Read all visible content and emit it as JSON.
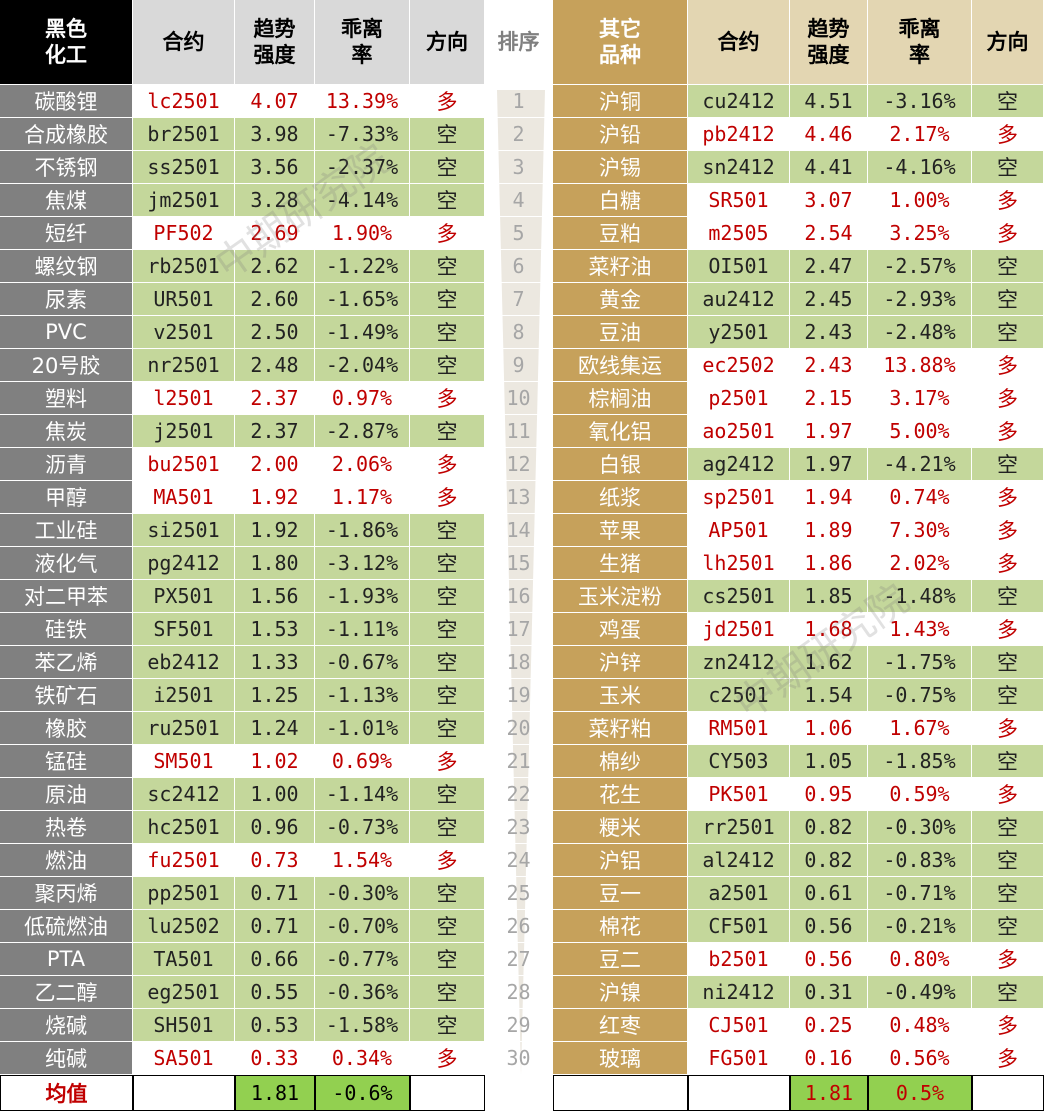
{
  "header": {
    "left": [
      "黑色化工",
      "合约",
      "趋势强度",
      "乖离率",
      "方向"
    ],
    "rank": "排序",
    "right": [
      "其它品种",
      "合约",
      "趋势强度",
      "乖离率",
      "方向"
    ]
  },
  "rows": [
    {
      "rank": 1,
      "left": [
        "碳酸锂",
        "lc2501",
        "4.07",
        "13.39%",
        "多"
      ],
      "right": [
        "沪铜",
        "cu2412",
        "4.51",
        "-3.16%",
        "空"
      ]
    },
    {
      "rank": 2,
      "left": [
        "合成橡胶",
        "br2501",
        "3.98",
        "-7.33%",
        "空"
      ],
      "right": [
        "沪铅",
        "pb2412",
        "4.46",
        "2.17%",
        "多"
      ]
    },
    {
      "rank": 3,
      "left": [
        "不锈钢",
        "ss2501",
        "3.56",
        "-2.37%",
        "空"
      ],
      "right": [
        "沪锡",
        "sn2412",
        "4.41",
        "-4.16%",
        "空"
      ]
    },
    {
      "rank": 4,
      "left": [
        "焦煤",
        "jm2501",
        "3.28",
        "-4.14%",
        "空"
      ],
      "right": [
        "白糖",
        "SR501",
        "3.07",
        "1.00%",
        "多"
      ]
    },
    {
      "rank": 5,
      "left": [
        "短纤",
        "PF502",
        "2.69",
        "1.90%",
        "多"
      ],
      "right": [
        "豆粕",
        "m2505",
        "2.54",
        "3.25%",
        "多"
      ]
    },
    {
      "rank": 6,
      "left": [
        "螺纹钢",
        "rb2501",
        "2.62",
        "-1.22%",
        "空"
      ],
      "right": [
        "菜籽油",
        "OI501",
        "2.47",
        "-2.57%",
        "空"
      ]
    },
    {
      "rank": 7,
      "left": [
        "尿素",
        "UR501",
        "2.60",
        "-1.65%",
        "空"
      ],
      "right": [
        "黄金",
        "au2412",
        "2.45",
        "-2.93%",
        "空"
      ]
    },
    {
      "rank": 8,
      "left": [
        "PVC",
        "v2501",
        "2.50",
        "-1.49%",
        "空"
      ],
      "right": [
        "豆油",
        "y2501",
        "2.43",
        "-2.48%",
        "空"
      ]
    },
    {
      "rank": 9,
      "left": [
        "20号胶",
        "nr2501",
        "2.48",
        "-2.04%",
        "空"
      ],
      "right": [
        "欧线集运",
        "ec2502",
        "2.43",
        "13.88%",
        "多"
      ]
    },
    {
      "rank": 10,
      "left": [
        "塑料",
        "l2501",
        "2.37",
        "0.97%",
        "多"
      ],
      "right": [
        "棕榈油",
        "p2501",
        "2.15",
        "3.17%",
        "多"
      ]
    },
    {
      "rank": 11,
      "left": [
        "焦炭",
        "j2501",
        "2.37",
        "-2.87%",
        "空"
      ],
      "right": [
        "氧化铝",
        "ao2501",
        "1.97",
        "5.00%",
        "多"
      ]
    },
    {
      "rank": 12,
      "left": [
        "沥青",
        "bu2501",
        "2.00",
        "2.06%",
        "多"
      ],
      "right": [
        "白银",
        "ag2412",
        "1.97",
        "-4.21%",
        "空"
      ]
    },
    {
      "rank": 13,
      "left": [
        "甲醇",
        "MA501",
        "1.92",
        "1.17%",
        "多"
      ],
      "right": [
        "纸浆",
        "sp2501",
        "1.94",
        "0.74%",
        "多"
      ]
    },
    {
      "rank": 14,
      "left": [
        "工业硅",
        "si2501",
        "1.92",
        "-1.86%",
        "空"
      ],
      "right": [
        "苹果",
        "AP501",
        "1.89",
        "7.30%",
        "多"
      ]
    },
    {
      "rank": 15,
      "left": [
        "液化气",
        "pg2412",
        "1.80",
        "-3.12%",
        "空"
      ],
      "right": [
        "生猪",
        "lh2501",
        "1.86",
        "2.02%",
        "多"
      ]
    },
    {
      "rank": 16,
      "left": [
        "对二甲苯",
        "PX501",
        "1.56",
        "-1.93%",
        "空"
      ],
      "right": [
        "玉米淀粉",
        "cs2501",
        "1.85",
        "-1.48%",
        "空"
      ]
    },
    {
      "rank": 17,
      "left": [
        "硅铁",
        "SF501",
        "1.53",
        "-1.11%",
        "空"
      ],
      "right": [
        "鸡蛋",
        "jd2501",
        "1.68",
        "1.43%",
        "多"
      ]
    },
    {
      "rank": 18,
      "left": [
        "苯乙烯",
        "eb2412",
        "1.33",
        "-0.67%",
        "空"
      ],
      "right": [
        "沪锌",
        "zn2412",
        "1.62",
        "-1.75%",
        "空"
      ]
    },
    {
      "rank": 19,
      "left": [
        "铁矿石",
        "i2501",
        "1.25",
        "-1.13%",
        "空"
      ],
      "right": [
        "玉米",
        "c2501",
        "1.54",
        "-0.75%",
        "空"
      ]
    },
    {
      "rank": 20,
      "left": [
        "橡胶",
        "ru2501",
        "1.24",
        "-1.01%",
        "空"
      ],
      "right": [
        "菜籽粕",
        "RM501",
        "1.06",
        "1.67%",
        "多"
      ]
    },
    {
      "rank": 21,
      "left": [
        "锰硅",
        "SM501",
        "1.02",
        "0.69%",
        "多"
      ],
      "right": [
        "棉纱",
        "CY503",
        "1.05",
        "-1.85%",
        "空"
      ]
    },
    {
      "rank": 22,
      "left": [
        "原油",
        "sc2412",
        "1.00",
        "-1.14%",
        "空"
      ],
      "right": [
        "花生",
        "PK501",
        "0.95",
        "0.59%",
        "多"
      ]
    },
    {
      "rank": 23,
      "left": [
        "热卷",
        "hc2501",
        "0.96",
        "-0.73%",
        "空"
      ],
      "right": [
        "粳米",
        "rr2501",
        "0.82",
        "-0.30%",
        "空"
      ]
    },
    {
      "rank": 24,
      "left": [
        "燃油",
        "fu2501",
        "0.73",
        "1.54%",
        "多"
      ],
      "right": [
        "沪铝",
        "al2412",
        "0.82",
        "-0.83%",
        "空"
      ]
    },
    {
      "rank": 25,
      "left": [
        "聚丙烯",
        "pp2501",
        "0.71",
        "-0.30%",
        "空"
      ],
      "right": [
        "豆一",
        "a2501",
        "0.61",
        "-0.71%",
        "空"
      ]
    },
    {
      "rank": 26,
      "left": [
        "低硫燃油",
        "lu2502",
        "0.71",
        "-0.70%",
        "空"
      ],
      "right": [
        "棉花",
        "CF501",
        "0.56",
        "-0.21%",
        "空"
      ]
    },
    {
      "rank": 27,
      "left": [
        "PTA",
        "TA501",
        "0.66",
        "-0.77%",
        "空"
      ],
      "right": [
        "豆二",
        "b2501",
        "0.56",
        "0.80%",
        "多"
      ]
    },
    {
      "rank": 28,
      "left": [
        "乙二醇",
        "eg2501",
        "0.55",
        "-0.36%",
        "空"
      ],
      "right": [
        "沪镍",
        "ni2412",
        "0.31",
        "-0.49%",
        "空"
      ]
    },
    {
      "rank": 29,
      "left": [
        "烧碱",
        "SH501",
        "0.53",
        "-1.58%",
        "空"
      ],
      "right": [
        "红枣",
        "CJ501",
        "0.25",
        "0.48%",
        "多"
      ]
    },
    {
      "rank": 30,
      "left": [
        "纯碱",
        "SA501",
        "0.33",
        "0.34%",
        "多"
      ],
      "right": [
        "玻璃",
        "FG501",
        "0.16",
        "0.56%",
        "多"
      ]
    }
  ],
  "footer": {
    "label": "均值",
    "left": [
      "1.81",
      "-0.6%"
    ],
    "right": [
      "1.81",
      "0.5%"
    ]
  },
  "watermark": "中期研究院"
}
